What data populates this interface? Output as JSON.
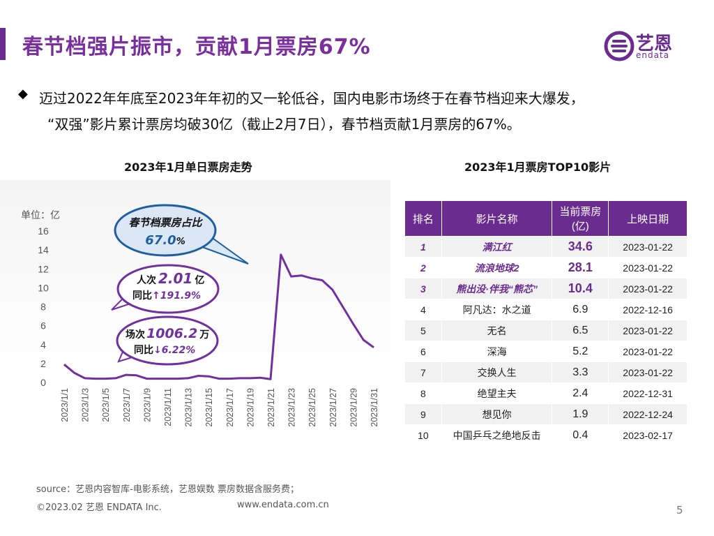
{
  "header": {
    "title": "春节档强片振市，贡献1月票房67%",
    "logo_cn": "艺恩",
    "logo_en": "endata"
  },
  "summary": {
    "bullet": "◆",
    "line1": "迈过2022年年底至2023年年初的又一轮低谷，国内电影市场终于在春节档迎来大爆发，",
    "line2": "“双强”影片累计票房均破30亿（截止2月7日），春节档贡献1月票房的67%。"
  },
  "chart_data": [
    {
      "type": "line",
      "title": "2023年1月单日票房走势",
      "ylabel": "单位：亿",
      "ylim": [
        0,
        16
      ],
      "yticks": [
        "0",
        "2",
        "4",
        "6",
        "8",
        "10",
        "12",
        "14",
        "16"
      ],
      "x_tick_labels": [
        "2023/1/1",
        "2023/1/3",
        "2023/1/5",
        "2023/1/7",
        "2023/1/9",
        "2023/1/11",
        "2023/1/13",
        "2023/1/15",
        "2023/1/17",
        "2023/1/19",
        "2023/1/21",
        "2023/1/23",
        "2023/1/25",
        "2023/1/27",
        "2023/1/29",
        "2023/1/31"
      ],
      "x": [
        "2023/1/1",
        "2023/1/2",
        "2023/1/3",
        "2023/1/4",
        "2023/1/5",
        "2023/1/6",
        "2023/1/7",
        "2023/1/8",
        "2023/1/9",
        "2023/1/10",
        "2023/1/11",
        "2023/1/12",
        "2023/1/13",
        "2023/1/14",
        "2023/1/15",
        "2023/1/16",
        "2023/1/17",
        "2023/1/18",
        "2023/1/19",
        "2023/1/20",
        "2023/1/21",
        "2023/1/22",
        "2023/1/23",
        "2023/1/24",
        "2023/1/25",
        "2023/1/26",
        "2023/1/27",
        "2023/1/28",
        "2023/1/29",
        "2023/1/30",
        "2023/1/31"
      ],
      "series": [
        {
          "color": "#7030a0",
          "values": [
            1.9,
            1.0,
            0.45,
            0.4,
            0.4,
            0.45,
            0.8,
            0.75,
            0.4,
            0.4,
            0.4,
            0.4,
            0.45,
            0.7,
            0.65,
            0.4,
            0.4,
            0.45,
            0.45,
            0.5,
            0.35,
            13.5,
            11.2,
            11.3,
            11.0,
            10.8,
            9.8,
            8.0,
            6.2,
            4.5,
            3.7
          ]
        }
      ],
      "annotations": {
        "share_label": "春节档票房占比",
        "share_value": "67.0",
        "share_unit": "%",
        "visits_label": "人次",
        "visits_value": "2.01",
        "visits_unit": "亿",
        "visits_yoy_label": "同比",
        "visits_yoy_value": "↑191.9%",
        "shows_label": "场次",
        "shows_value": "1006.2",
        "shows_unit": "万",
        "shows_yoy_label": "同比",
        "shows_yoy_value": "↓6.22%"
      }
    },
    {
      "type": "table",
      "title": "2023年1月票房TOP10影片",
      "columns": [
        "排名",
        "影片名称",
        "当前票房(亿)",
        "上映日期"
      ],
      "rows": [
        [
          "1",
          "满江红",
          "34.6",
          "2023-01-22"
        ],
        [
          "2",
          "流浪地球2",
          "28.1",
          "2023-01-22"
        ],
        [
          "3",
          "熊出没·伴我“熊芯”",
          "10.4",
          "2023-01-22"
        ],
        [
          "4",
          "阿凡达：水之道",
          "6.9",
          "2022-12-16"
        ],
        [
          "5",
          "无名",
          "6.5",
          "2023-01-22"
        ],
        [
          "6",
          "深海",
          "5.2",
          "2023-01-22"
        ],
        [
          "7",
          "交换人生",
          "3.3",
          "2023-01-22"
        ],
        [
          "8",
          "绝望主夫",
          "2.4",
          "2022-12-31"
        ],
        [
          "9",
          "想见你",
          "1.9",
          "2022-12-24"
        ],
        [
          "10",
          "中国乒乓之绝地反击",
          "0.4",
          "2023-02-17"
        ]
      ]
    }
  ],
  "footer": {
    "source": "source：艺恩内容智库-电影系统，艺恩娱数   票房数据含服务费；",
    "copyright": "©2023.02 艺恩 ENDATA Inc.",
    "website": "www.endata.com.cn",
    "page_number": "5"
  },
  "colors": {
    "brand": "#6b2c91",
    "line": "#7030a0",
    "callout_border": "#1f5fa0",
    "callout_fill": "#dbe7f4"
  }
}
